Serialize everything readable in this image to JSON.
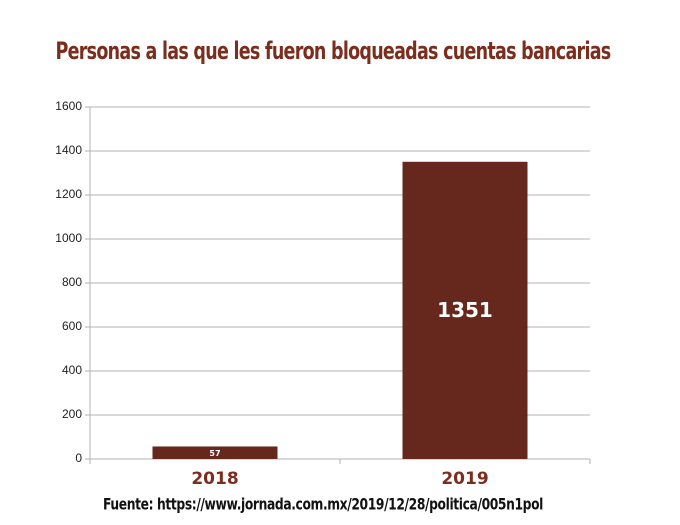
{
  "chart_data": {
    "type": "bar",
    "title": "Personas a las que les fueron bloqueadas cuentas bancarias",
    "source": "Fuente: https://www.jornada.com.mx/2019/12/28/politica/005n1pol",
    "categories": [
      "2018",
      "2019"
    ],
    "values": [
      57,
      1351
    ],
    "color": "#66281c",
    "ylim": [
      0,
      1600
    ],
    "yticks": [
      0,
      200,
      400,
      600,
      800,
      1000,
      1200,
      1400,
      1600
    ],
    "grid": true
  }
}
